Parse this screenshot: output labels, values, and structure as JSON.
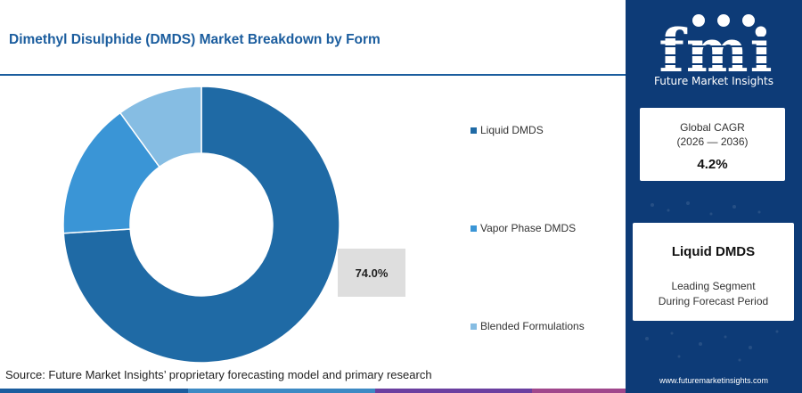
{
  "title": "Dimethyl Disulphide (DMDS) Market Breakdown by Form",
  "chart_data": {
    "type": "pie",
    "donut": true,
    "categories": [
      "Liquid DMDS",
      "Vapor Phase DMDS",
      "Blended Formulations"
    ],
    "values": [
      74.0,
      16.0,
      10.0
    ],
    "colors": [
      "#1f6aa5",
      "#3a95d6",
      "#86bde3"
    ],
    "start_angle_deg": 0,
    "direction": "clockwise",
    "highlight_label": "74.0%",
    "legend_position": "right"
  },
  "source": "Source: Future Market Insights’ proprietary forecasting model and primary research",
  "bottom_bar_colors": [
    "#1b5d9e",
    "#3d8ac4",
    "#6b3fa0",
    "#a0478c"
  ],
  "sidebar": {
    "logo_text": "fmi",
    "logo_subtitle": "Future Market Insights",
    "cagr_label": "Global CAGR",
    "cagr_period": "(2026 — 2036)",
    "cagr_value": "4.2%",
    "segment_name": "Liquid DMDS",
    "segment_desc_line1": "Leading Segment",
    "segment_desc_line2": "During Forecast Period",
    "url": "www.futuremarketinsights.com"
  },
  "colors": {
    "brand_navy": "#0d3b77",
    "title_blue": "#1b5d9e"
  }
}
